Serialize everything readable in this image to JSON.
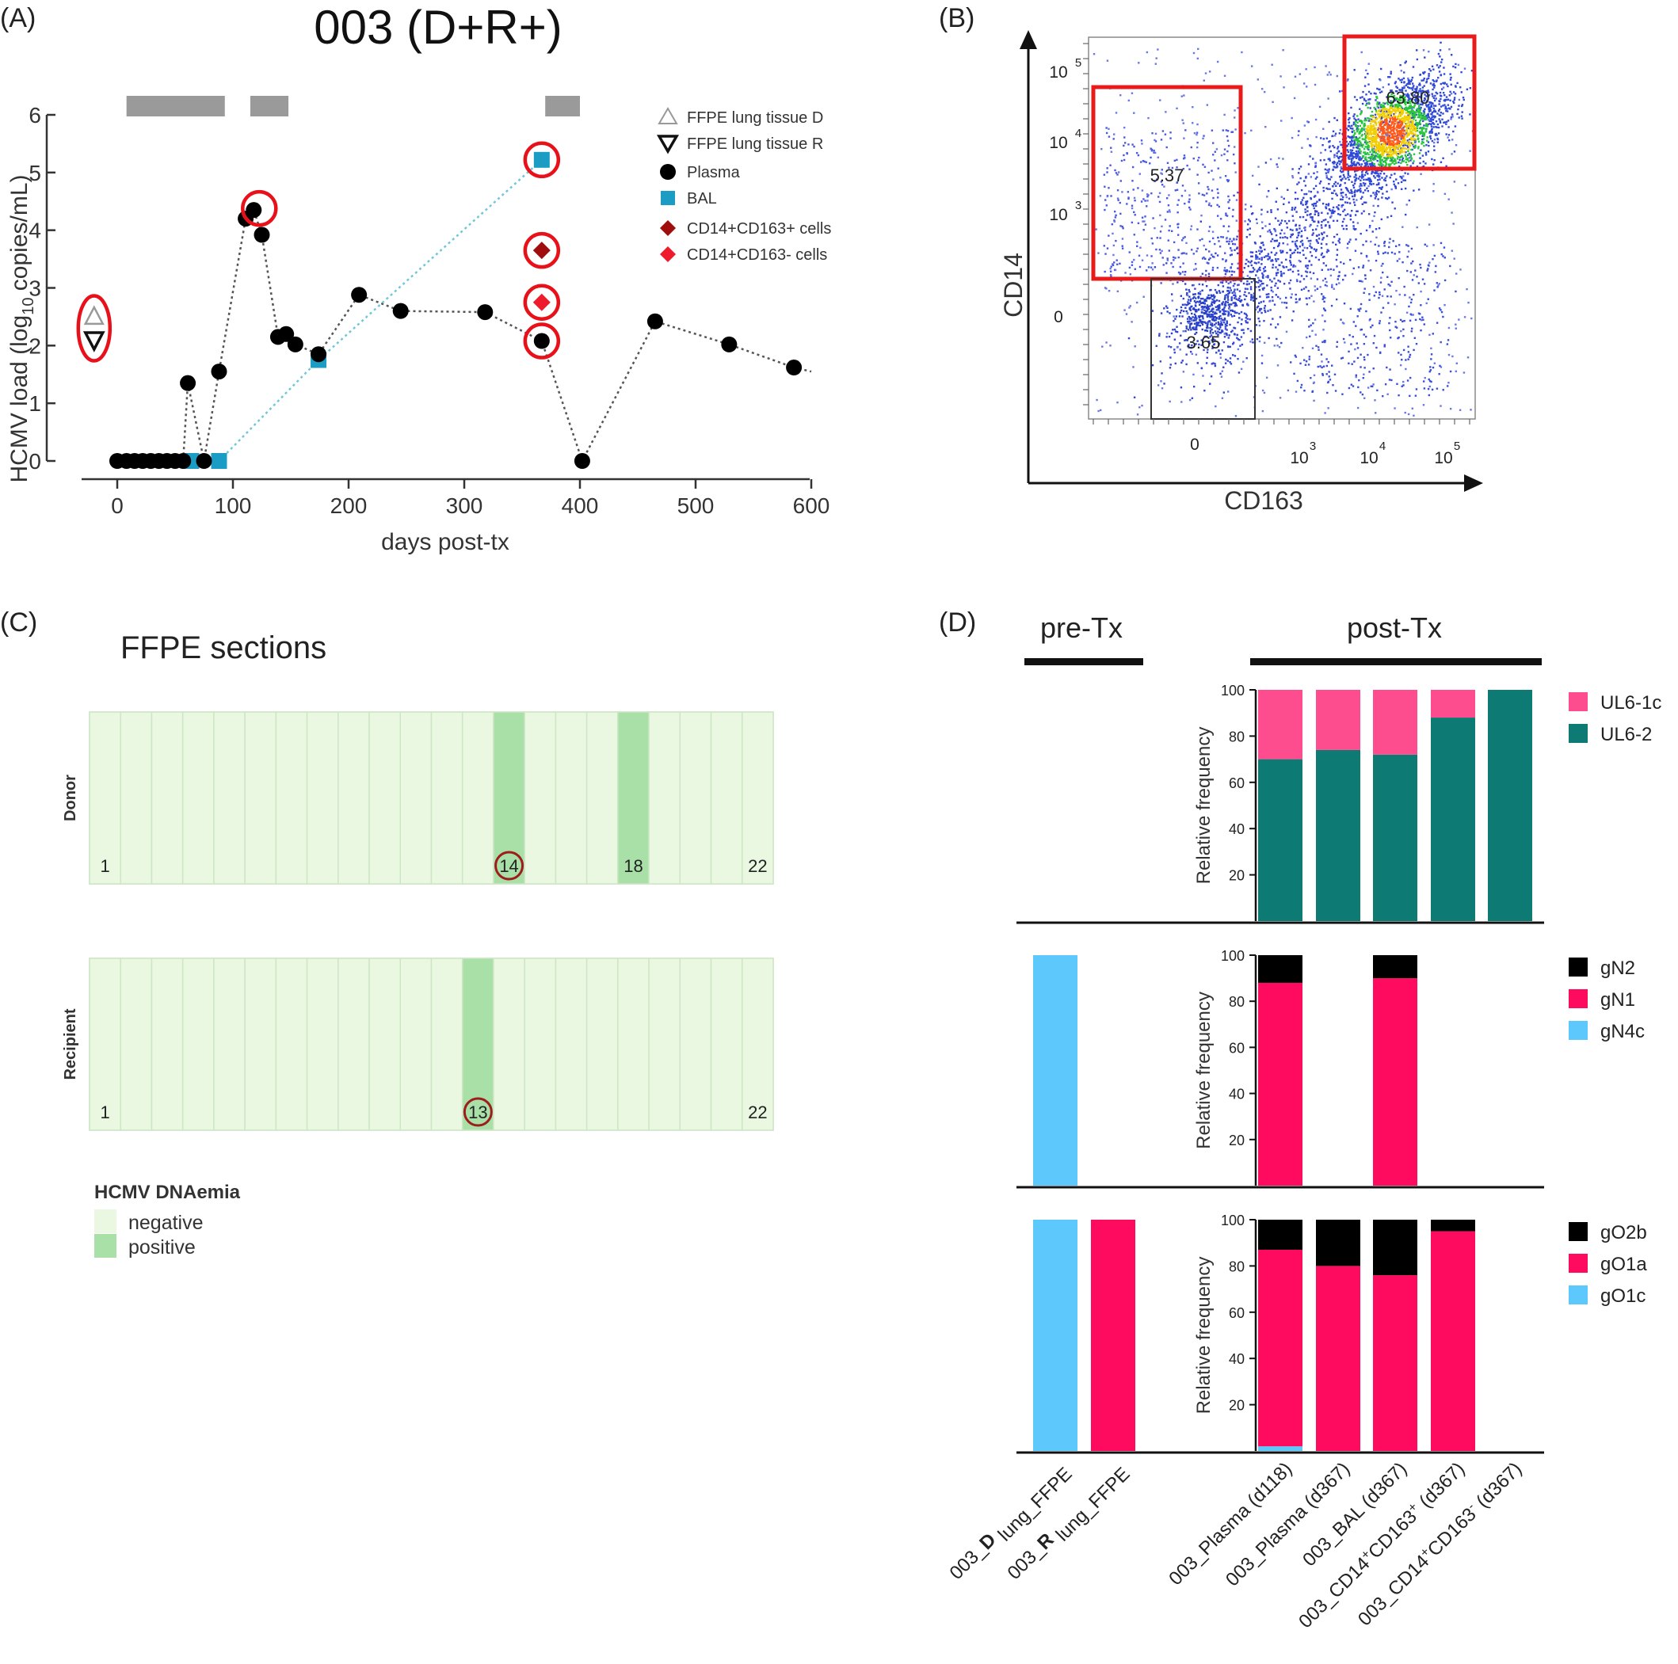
{
  "panel_labels": {
    "a": "(A)",
    "b": "(B)",
    "c": "(C)",
    "d": "(D)"
  },
  "colors": {
    "plasma": "#000000",
    "bal": "#1b9cc4",
    "cd163pos": "#a00d0d",
    "cd163neg": "#ee1b2c",
    "highlight": "#e8111a",
    "treatment_bar": "#9a9a9a",
    "negative": "#eaf8e2",
    "positive": "#a8e0a8",
    "section_circle": "#9e1c1c",
    "ul6_1c": "#fd4d8e",
    "ul6_2": "#0d7a74",
    "gn2": "#000000",
    "gn1": "#fe0a5e",
    "gn4c": "#5cc8fb",
    "go2b": "#000000",
    "go1a": "#fe0a5e",
    "go1c": "#5cc8fb"
  },
  "chart_data": [
    {
      "panel": "A",
      "type": "scatter",
      "title": "003 (D+R+)",
      "xlabel": "days post-tx",
      "ylabel_main": "HCMV load (log",
      "ylabel_sub": "10",
      "ylabel_tail": " copies/mL)",
      "xlim": [
        -30,
        600
      ],
      "ylim": [
        0,
        6
      ],
      "xticks": [
        0,
        100,
        200,
        300,
        400,
        500,
        600
      ],
      "yticks": [
        0,
        1,
        2,
        3,
        4,
        5,
        6
      ],
      "treatment_periods": [
        [
          8,
          93
        ],
        [
          115,
          148
        ],
        [
          370,
          400
        ]
      ],
      "legend_position": "top-right",
      "series": [
        {
          "name": "FFPE lung tissue D",
          "marker": "triangle-up",
          "x": [
            -20
          ],
          "y": [
            2.5
          ]
        },
        {
          "name": "FFPE lung tissue R",
          "marker": "triangle-down",
          "x": [
            -20
          ],
          "y": [
            2.1
          ]
        },
        {
          "name": "Plasma",
          "marker": "circle",
          "x": [
            0,
            8,
            15,
            22,
            29,
            36,
            43,
            50,
            57,
            61,
            75,
            88,
            111,
            118,
            125,
            139,
            146,
            154,
            174,
            209,
            245,
            318,
            367,
            402,
            465,
            529,
            585
          ],
          "y": [
            0,
            0,
            0,
            0,
            0,
            0,
            0,
            0,
            0,
            1.35,
            0,
            1.55,
            4.2,
            4.35,
            3.92,
            2.15,
            2.2,
            2.02,
            1.85,
            2.88,
            2.6,
            2.58,
            2.08,
            0,
            2.42,
            2.02,
            1.62
          ]
        },
        {
          "name": "BAL",
          "marker": "square",
          "x": [
            64,
            88,
            174,
            367
          ],
          "y": [
            0,
            0,
            1.75,
            5.22
          ]
        },
        {
          "name": "CD14+CD163+ cells",
          "marker": "diamond",
          "x": [
            367
          ],
          "y": [
            3.65
          ]
        },
        {
          "name": "CD14+CD163- cells",
          "marker": "diamond",
          "x": [
            367
          ],
          "y": [
            2.75
          ]
        }
      ],
      "highlighted": [
        "FFPE lung tissue",
        "Plasma d118",
        "BAL d367",
        "CD14+CD163+ d367",
        "CD14+CD163- d367",
        "Plasma d367"
      ]
    },
    {
      "panel": "B",
      "type": "scatter",
      "xlabel": "CD163",
      "ylabel": "CD14",
      "xticks": [
        "0",
        "10",
        "10",
        "10"
      ],
      "xtick_exps": [
        "",
        "3",
        "4",
        "5"
      ],
      "yticks": [
        "0",
        "10",
        "10",
        "10"
      ],
      "ytick_exps": [
        "",
        "3",
        "4",
        "5"
      ],
      "gates": [
        {
          "label": "5.37",
          "color": "red"
        },
        {
          "label": "63.80",
          "color": "red"
        },
        {
          "label": "3.65",
          "color": "black"
        }
      ]
    },
    {
      "panel": "C",
      "type": "heatmap",
      "title": "FFPE sections",
      "rows": [
        {
          "name": "Donor",
          "positive": [
            14,
            18
          ],
          "circled": [
            14
          ],
          "labels": [
            1,
            14,
            18,
            22
          ]
        },
        {
          "name": "Recipient",
          "positive": [
            13
          ],
          "circled": [
            13
          ],
          "labels": [
            1,
            13,
            22
          ]
        }
      ],
      "sections": 22,
      "legend_title": "HCMV DNAemia",
      "legend": [
        "negative",
        "positive"
      ]
    },
    {
      "panel": "D",
      "type": "bar",
      "stacked": true,
      "group_labels": [
        "pre-Tx",
        "post-Tx"
      ],
      "ylabel": "Relative frequency",
      "ylim": [
        0,
        100
      ],
      "yticks": [
        20,
        40,
        60,
        80,
        100
      ],
      "categories": [
        "003_D lung_FFPE",
        "003_R lung_FFPE",
        "003_Plasma (d118)",
        "003_Plasma (d367)",
        "003_BAL (d367)",
        "003_CD14+CD163+ (d367)",
        "003_CD14+CD163- (d367)"
      ],
      "category_parts": [
        {
          "pre": "003_",
          "bold": "D",
          "post": " lung_FFPE"
        },
        {
          "pre": "003_",
          "bold": "R",
          "post": " lung_FFPE"
        },
        {
          "pre": "003_Plasma (d118)"
        },
        {
          "pre": "003_Plasma (d367)"
        },
        {
          "pre": "003_BAL (d367)"
        },
        {
          "pre": "003_CD14",
          "sup1": "+",
          "mid": "CD163",
          "sup2": "+",
          "post": " (d367)"
        },
        {
          "pre": "003_CD14",
          "sup1": "+",
          "mid": "CD163",
          "sup2": "-",
          "post": " (d367)"
        }
      ],
      "subplots": [
        {
          "gene": "UL6",
          "series": [
            {
              "name": "UL6-1c",
              "values": [
                null,
                null,
                30,
                26,
                28,
                12,
                0
              ]
            },
            {
              "name": "UL6-2",
              "values": [
                null,
                null,
                70,
                74,
                72,
                88,
                100
              ]
            }
          ]
        },
        {
          "gene": "gN",
          "series": [
            {
              "name": "gN2",
              "values": [
                0,
                null,
                12,
                null,
                10,
                null,
                null
              ]
            },
            {
              "name": "gN1",
              "values": [
                0,
                null,
                88,
                null,
                90,
                null,
                null
              ]
            },
            {
              "name": "gN4c",
              "values": [
                100,
                null,
                0,
                null,
                0,
                null,
                null
              ]
            }
          ]
        },
        {
          "gene": "gO",
          "series": [
            {
              "name": "gO2b",
              "values": [
                0,
                0,
                13,
                20,
                24,
                5,
                null
              ]
            },
            {
              "name": "gO1a",
              "values": [
                0,
                100,
                85,
                80,
                76,
                95,
                null
              ]
            },
            {
              "name": "gO1c",
              "values": [
                100,
                0,
                2,
                0,
                0,
                0,
                null
              ]
            }
          ]
        }
      ]
    }
  ]
}
